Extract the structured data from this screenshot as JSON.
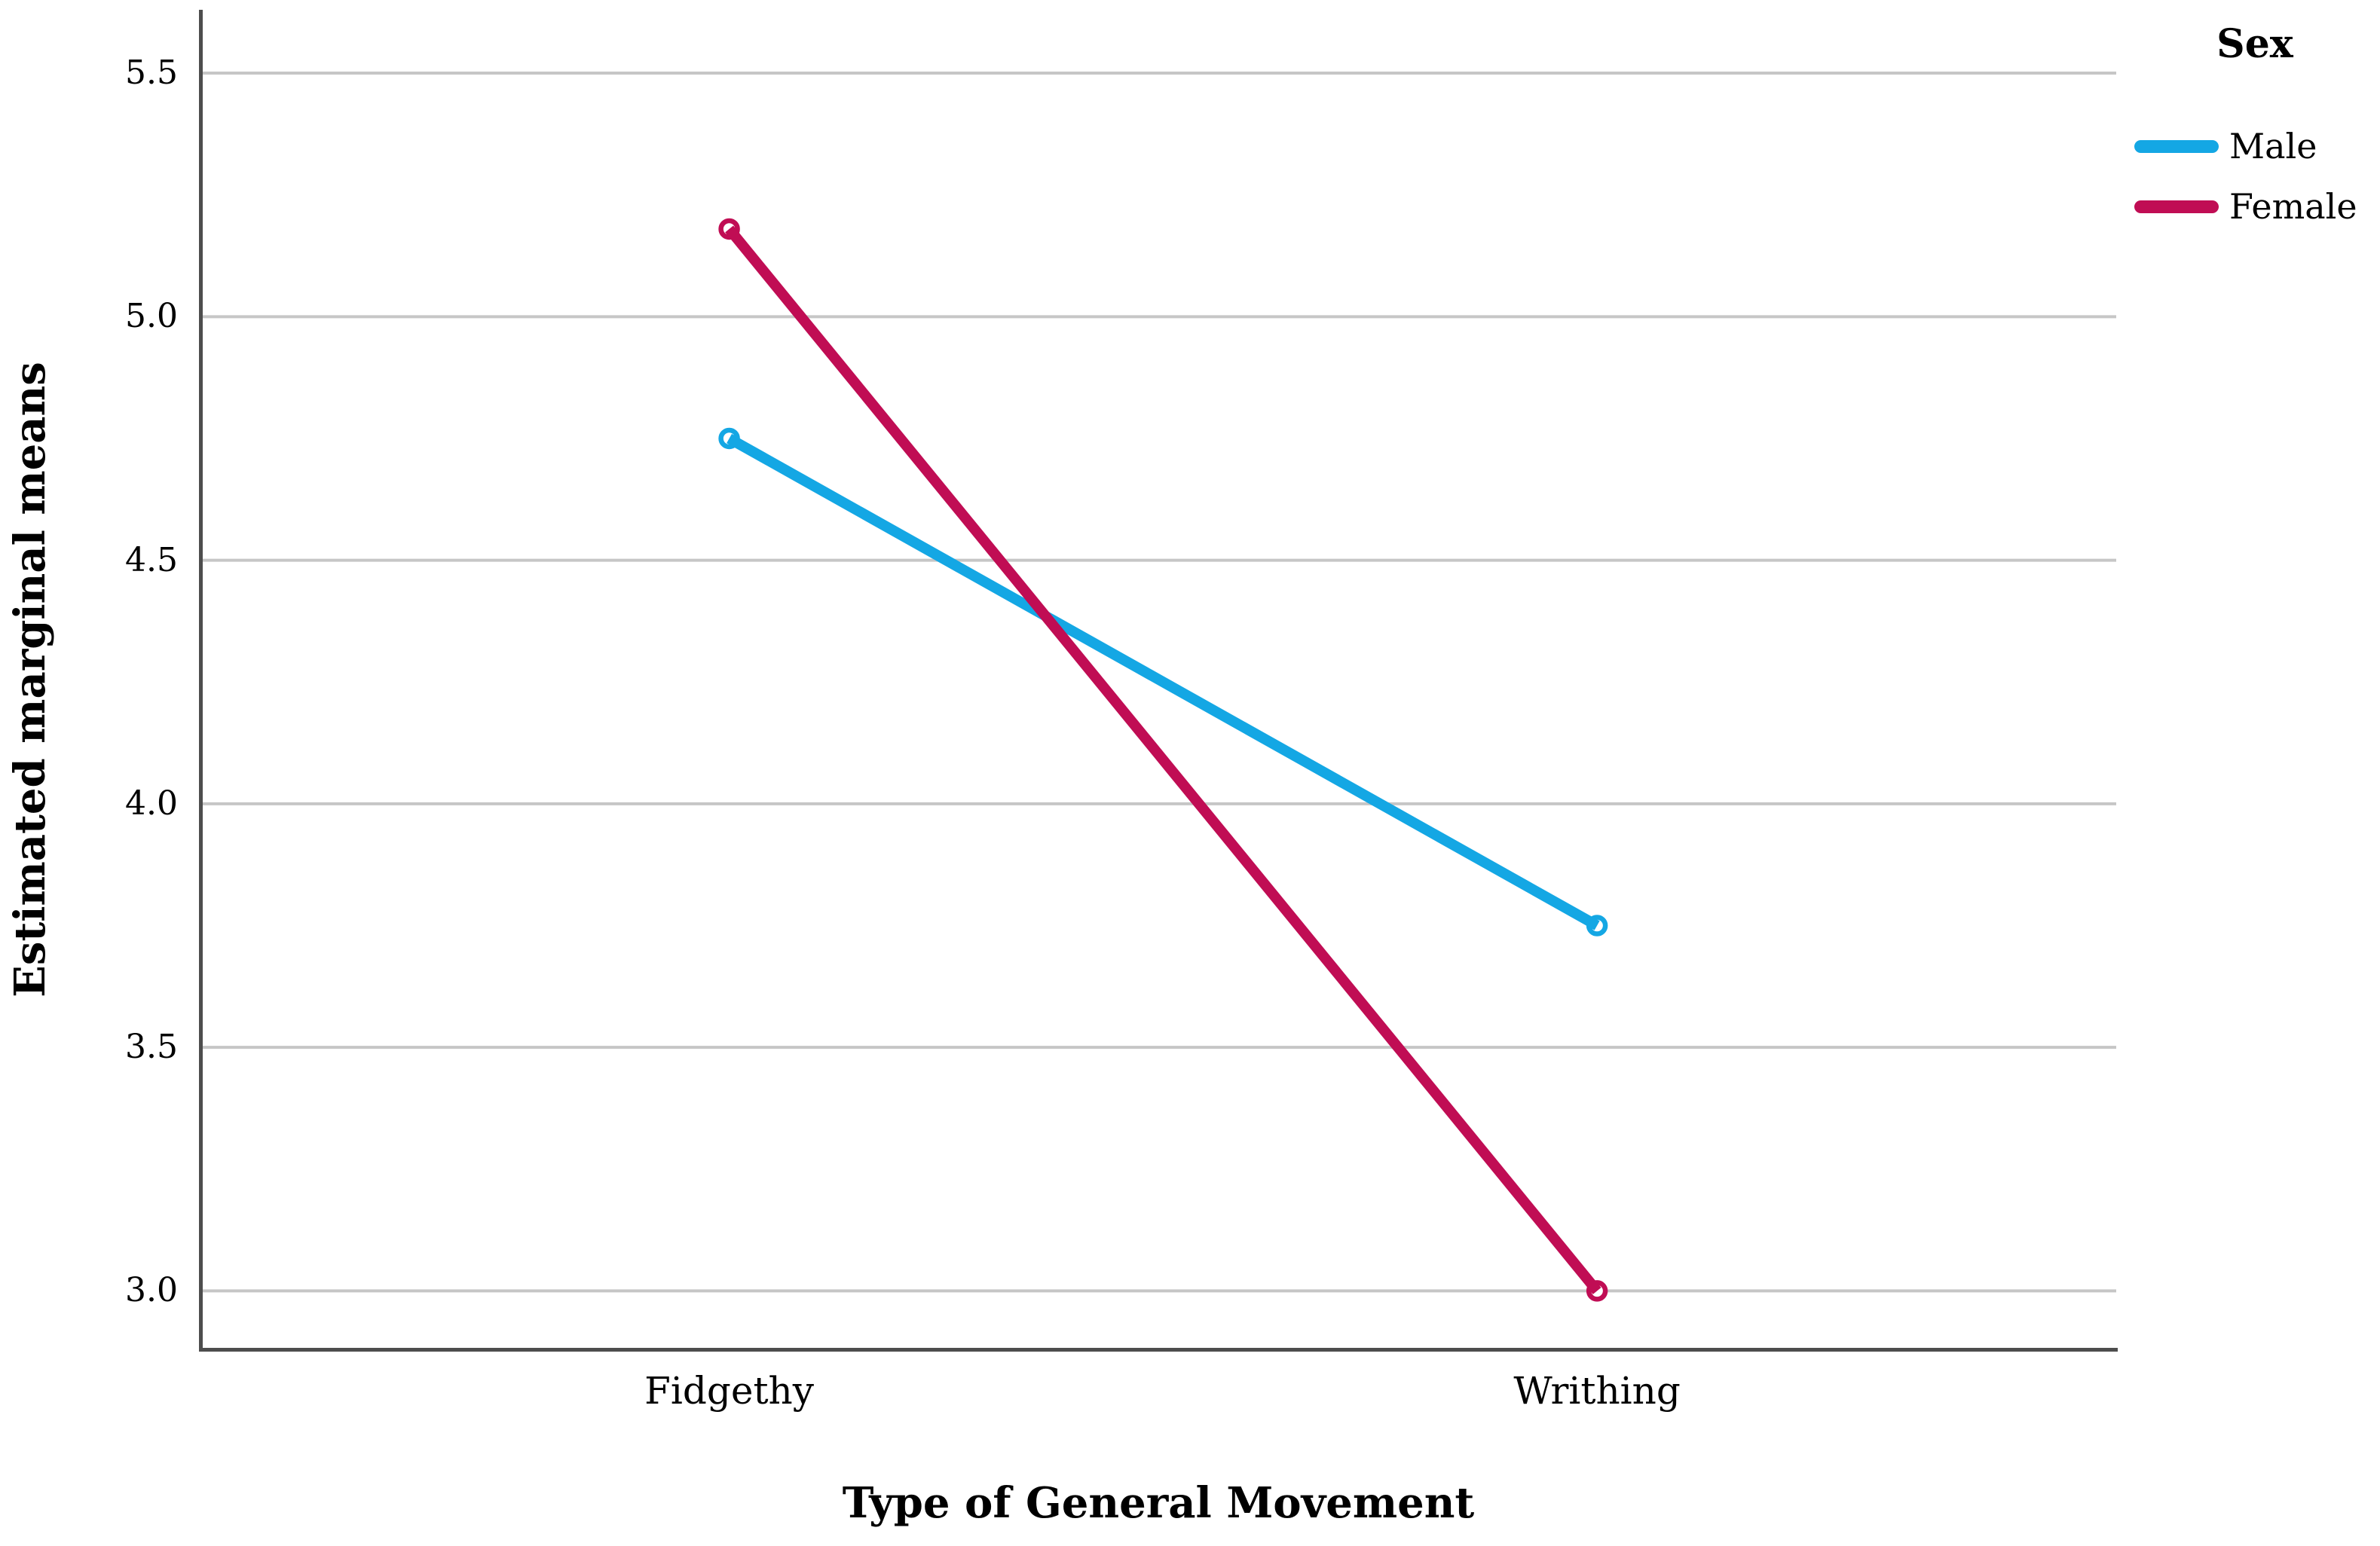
{
  "chart_data": {
    "type": "line",
    "title": "",
    "categories": [
      "Fidgethy",
      "Writhing"
    ],
    "series": [
      {
        "name": "Male",
        "color": "#14a7e4",
        "values": [
          4.75,
          3.75
        ]
      },
      {
        "name": "Female",
        "color": "#c00d54",
        "values": [
          5.18,
          3.0
        ]
      }
    ],
    "xlabel": "Type of General Movement",
    "ylabel": "Estimated marginal means",
    "yticks": [
      5.5,
      5.0,
      4.5,
      4.0,
      3.5,
      3.0
    ],
    "ytick_labels": [
      "5.5",
      "5.0",
      "4.5",
      "4.0",
      "3.5",
      "3.0"
    ],
    "ylim": [
      2.88,
      5.63
    ],
    "grid": "horizontal-only",
    "grid_color": "#c6c6c6",
    "axis_color": "#4d4d4d",
    "marker": "open-circle",
    "legend": {
      "title": "Sex",
      "position": "top-right",
      "entries": [
        "Male",
        "Female"
      ]
    }
  }
}
